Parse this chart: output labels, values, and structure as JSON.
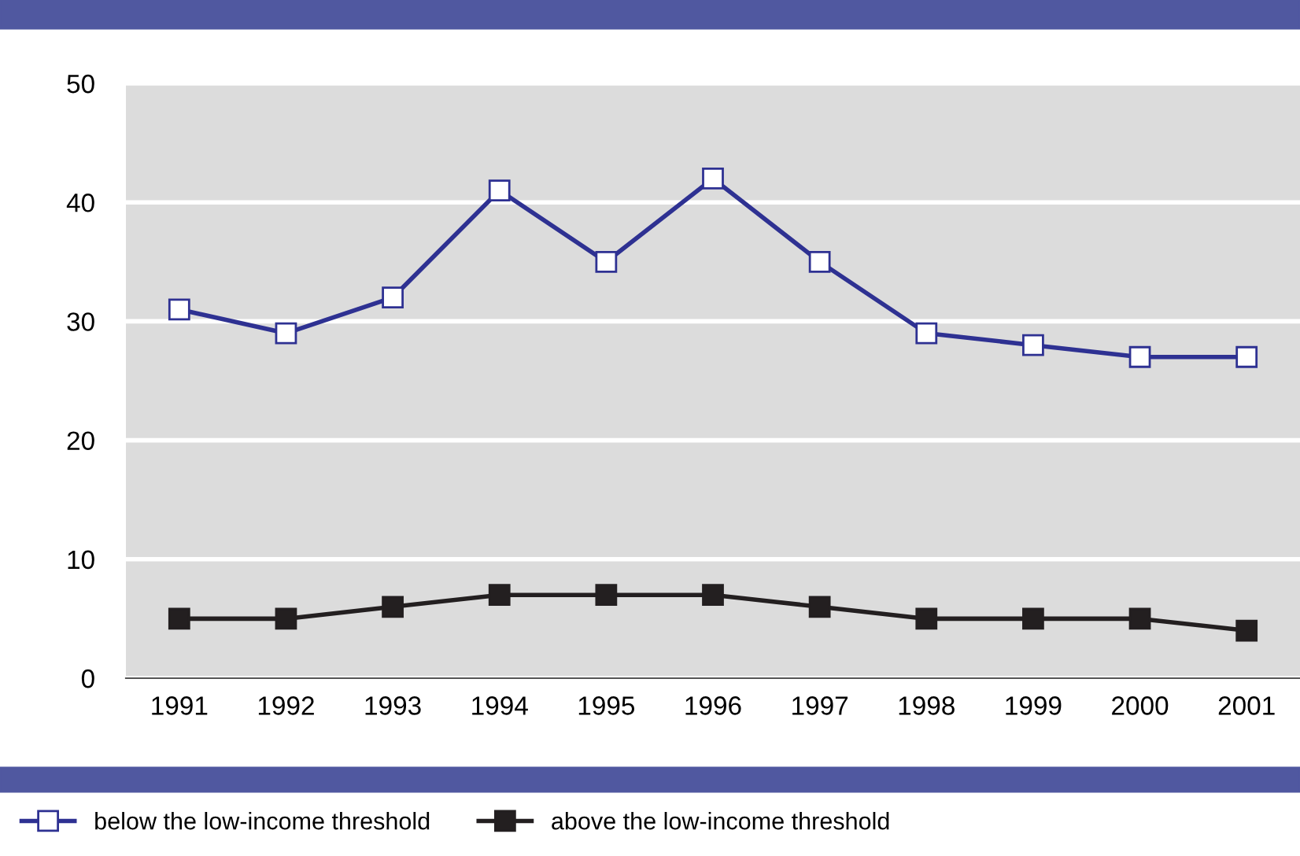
{
  "chart_data": {
    "type": "line",
    "categories": [
      "1991",
      "1992",
      "1993",
      "1994",
      "1995",
      "1996",
      "1997",
      "1998",
      "1999",
      "2000",
      "2001"
    ],
    "series": [
      {
        "name": "below the low-income threshold",
        "color": "#2e3192",
        "values": [
          31,
          29,
          32,
          41,
          35,
          42,
          35,
          29,
          28,
          27,
          27
        ]
      },
      {
        "name": "above the low-income threshold",
        "color": "#231f20",
        "values": [
          5,
          5,
          6,
          7,
          7,
          7,
          6,
          5,
          5,
          5,
          4
        ]
      }
    ],
    "ylim": [
      0,
      50
    ],
    "yticks": [
      0,
      10,
      20,
      30,
      40,
      50
    ],
    "grid": "y",
    "legend": "bottom",
    "marker": "square",
    "line_style": "solid"
  }
}
